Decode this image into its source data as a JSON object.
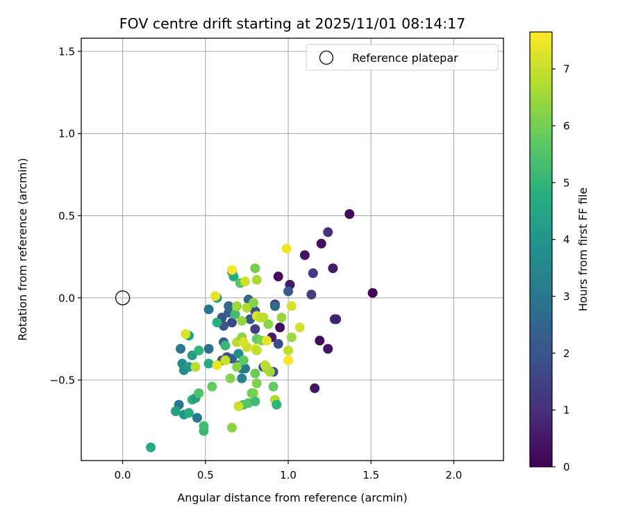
{
  "chart_data": {
    "type": "scatter",
    "title": "FOV centre drift starting at 2025/11/01 08:14:17",
    "xlabel": "Angular distance from reference (arcmin)",
    "ylabel": "Rotation from reference (arcmin)",
    "xlim": [
      -0.25,
      2.3
    ],
    "ylim": [
      -0.99,
      1.58
    ],
    "xticks": [
      0.0,
      0.5,
      1.0,
      1.5,
      2.0
    ],
    "xtick_labels": [
      "0.0",
      "0.5",
      "1.0",
      "1.5",
      "2.0"
    ],
    "yticks": [
      -0.5,
      0.0,
      0.5,
      1.0,
      1.5
    ],
    "ytick_labels": [
      "−0.5",
      "0.0",
      "0.5",
      "1.0",
      "1.5"
    ],
    "grid": true,
    "legend": {
      "placement": "top-right",
      "entries": [
        "Reference platepar"
      ]
    },
    "reference_point": {
      "x": 0.0,
      "y": 0.0
    },
    "colorbar": {
      "label": "Hours from first FF file",
      "range": [
        0,
        7.65
      ],
      "ticks": [
        0,
        1,
        2,
        3,
        4,
        5,
        6,
        7
      ],
      "tick_labels": [
        "0",
        "1",
        "2",
        "3",
        "4",
        "5",
        "6",
        "7"
      ],
      "colormap": "viridis"
    },
    "points": [
      {
        "x": 1.37,
        "y": 0.51,
        "h": 0.1
      },
      {
        "x": 1.24,
        "y": 0.4,
        "h": 1.1
      },
      {
        "x": 1.2,
        "y": 0.33,
        "h": 0.3
      },
      {
        "x": 1.27,
        "y": 0.18,
        "h": 0.5
      },
      {
        "x": 1.51,
        "y": 0.03,
        "h": 0.0
      },
      {
        "x": 1.1,
        "y": 0.26,
        "h": 0.4
      },
      {
        "x": 1.15,
        "y": 0.15,
        "h": 1.3
      },
      {
        "x": 0.94,
        "y": 0.13,
        "h": 0.2
      },
      {
        "x": 1.01,
        "y": 0.08,
        "h": 0.5
      },
      {
        "x": 1.14,
        "y": 0.02,
        "h": 1.4
      },
      {
        "x": 1.28,
        "y": -0.13,
        "h": 0.9
      },
      {
        "x": 1.29,
        "y": -0.13,
        "h": 0.7
      },
      {
        "x": 0.95,
        "y": -0.18,
        "h": 0.3
      },
      {
        "x": 0.9,
        "y": -0.24,
        "h": 0.6
      },
      {
        "x": 1.19,
        "y": -0.26,
        "h": 0.2
      },
      {
        "x": 1.24,
        "y": -0.31,
        "h": 0.4
      },
      {
        "x": 1.16,
        "y": -0.55,
        "h": 0.5
      },
      {
        "x": 0.94,
        "y": -0.28,
        "h": 1.8
      },
      {
        "x": 1.0,
        "y": 0.04,
        "h": 2.2
      },
      {
        "x": 0.92,
        "y": -0.04,
        "h": 0.8
      },
      {
        "x": 0.92,
        "y": -0.05,
        "h": 2.6
      },
      {
        "x": 0.85,
        "y": -0.42,
        "h": 1.6
      },
      {
        "x": 0.91,
        "y": -0.45,
        "h": 1.8
      },
      {
        "x": 0.8,
        "y": -0.08,
        "h": 1.9
      },
      {
        "x": 0.76,
        "y": -0.01,
        "h": 2.5
      },
      {
        "x": 0.77,
        "y": -0.13,
        "h": 2.1
      },
      {
        "x": 0.8,
        "y": -0.19,
        "h": 1.5
      },
      {
        "x": 0.66,
        "y": -0.15,
        "h": 1.7
      },
      {
        "x": 0.6,
        "y": -0.12,
        "h": 1.9
      },
      {
        "x": 0.61,
        "y": -0.17,
        "h": 2.0
      },
      {
        "x": 0.64,
        "y": -0.09,
        "h": 2.4
      },
      {
        "x": 0.64,
        "y": -0.05,
        "h": 2.7
      },
      {
        "x": 0.52,
        "y": -0.07,
        "h": 2.9
      },
      {
        "x": 0.52,
        "y": -0.31,
        "h": 2.8
      },
      {
        "x": 0.61,
        "y": -0.27,
        "h": 2.3
      },
      {
        "x": 0.63,
        "y": -0.36,
        "h": 2.1
      },
      {
        "x": 0.6,
        "y": -0.38,
        "h": 1.9
      },
      {
        "x": 0.66,
        "y": -0.37,
        "h": 2.2
      },
      {
        "x": 0.7,
        "y": -0.41,
        "h": 2.6
      },
      {
        "x": 0.72,
        "y": -0.49,
        "h": 3.4
      },
      {
        "x": 0.72,
        "y": -0.43,
        "h": 3.2
      },
      {
        "x": 0.66,
        "y": 0.16,
        "h": 2.3
      },
      {
        "x": 0.67,
        "y": 0.13,
        "h": 4.7
      },
      {
        "x": 0.57,
        "y": 0.0,
        "h": 3.9
      },
      {
        "x": 0.7,
        "y": -0.34,
        "h": 3.7
      },
      {
        "x": 0.74,
        "y": -0.43,
        "h": 3.1
      },
      {
        "x": 0.35,
        "y": -0.31,
        "h": 3.0
      },
      {
        "x": 0.36,
        "y": -0.4,
        "h": 3.6
      },
      {
        "x": 0.37,
        "y": -0.44,
        "h": 3.8
      },
      {
        "x": 0.4,
        "y": -0.42,
        "h": 4.1
      },
      {
        "x": 0.42,
        "y": -0.35,
        "h": 4.3
      },
      {
        "x": 0.4,
        "y": -0.23,
        "h": 4.5
      },
      {
        "x": 0.46,
        "y": -0.32,
        "h": 4.9
      },
      {
        "x": 0.52,
        "y": -0.4,
        "h": 4.6
      },
      {
        "x": 0.57,
        "y": -0.15,
        "h": 4.8
      },
      {
        "x": 0.62,
        "y": -0.29,
        "h": 5.1
      },
      {
        "x": 0.68,
        "y": -0.1,
        "h": 5.3
      },
      {
        "x": 0.34,
        "y": -0.65,
        "h": 3.0
      },
      {
        "x": 0.32,
        "y": -0.69,
        "h": 4.4
      },
      {
        "x": 0.37,
        "y": -0.71,
        "h": 4.0
      },
      {
        "x": 0.4,
        "y": -0.7,
        "h": 4.7
      },
      {
        "x": 0.42,
        "y": -0.62,
        "h": 4.9
      },
      {
        "x": 0.44,
        "y": -0.61,
        "h": 4.2
      },
      {
        "x": 0.45,
        "y": -0.73,
        "h": 3.1
      },
      {
        "x": 0.49,
        "y": -0.81,
        "h": 5.1
      },
      {
        "x": 0.49,
        "y": -0.78,
        "h": 5.3
      },
      {
        "x": 0.17,
        "y": -0.91,
        "h": 4.6
      },
      {
        "x": 0.46,
        "y": -0.58,
        "h": 5.5
      },
      {
        "x": 0.54,
        "y": -0.54,
        "h": 5.8
      },
      {
        "x": 0.66,
        "y": -0.79,
        "h": 6.3
      },
      {
        "x": 0.73,
        "y": -0.65,
        "h": 5.4
      },
      {
        "x": 0.76,
        "y": -0.64,
        "h": 5.6
      },
      {
        "x": 0.79,
        "y": -0.58,
        "h": 6.4
      },
      {
        "x": 0.8,
        "y": -0.63,
        "h": 5.2
      },
      {
        "x": 0.7,
        "y": -0.66,
        "h": 7.0
      },
      {
        "x": 0.78,
        "y": -0.58,
        "h": 6.0
      },
      {
        "x": 0.81,
        "y": -0.52,
        "h": 6.1
      },
      {
        "x": 0.91,
        "y": -0.54,
        "h": 5.8
      },
      {
        "x": 0.92,
        "y": -0.62,
        "h": 6.7
      },
      {
        "x": 0.93,
        "y": -0.65,
        "h": 4.9
      },
      {
        "x": 0.65,
        "y": -0.49,
        "h": 6.2
      },
      {
        "x": 0.73,
        "y": -0.38,
        "h": 5.7
      },
      {
        "x": 0.8,
        "y": -0.46,
        "h": 5.9
      },
      {
        "x": 0.87,
        "y": -0.43,
        "h": 6.5
      },
      {
        "x": 0.89,
        "y": -0.45,
        "h": 6.6
      },
      {
        "x": 0.86,
        "y": -0.41,
        "h": 6.8
      },
      {
        "x": 0.56,
        "y": 0.01,
        "h": 7.3
      },
      {
        "x": 0.66,
        "y": 0.17,
        "h": 7.6
      },
      {
        "x": 0.71,
        "y": 0.09,
        "h": 5.6
      },
      {
        "x": 0.74,
        "y": 0.1,
        "h": 7.1
      },
      {
        "x": 0.81,
        "y": 0.11,
        "h": 6.6
      },
      {
        "x": 0.8,
        "y": 0.18,
        "h": 6.0
      },
      {
        "x": 0.99,
        "y": 0.3,
        "h": 7.5
      },
      {
        "x": 0.69,
        "y": -0.05,
        "h": 6.5
      },
      {
        "x": 0.75,
        "y": -0.06,
        "h": 6.7
      },
      {
        "x": 0.79,
        "y": -0.03,
        "h": 6.2
      },
      {
        "x": 0.72,
        "y": -0.14,
        "h": 6.4
      },
      {
        "x": 0.81,
        "y": -0.11,
        "h": 7.3
      },
      {
        "x": 0.83,
        "y": -0.12,
        "h": 7.0
      },
      {
        "x": 0.85,
        "y": -0.12,
        "h": 6.9
      },
      {
        "x": 0.88,
        "y": -0.16,
        "h": 6.3
      },
      {
        "x": 0.96,
        "y": -0.12,
        "h": 6.4
      },
      {
        "x": 1.02,
        "y": -0.05,
        "h": 7.2
      },
      {
        "x": 1.07,
        "y": -0.18,
        "h": 7.1
      },
      {
        "x": 1.02,
        "y": -0.24,
        "h": 6.5
      },
      {
        "x": 0.81,
        "y": -0.25,
        "h": 5.8
      },
      {
        "x": 0.84,
        "y": -0.26,
        "h": 6.1
      },
      {
        "x": 0.87,
        "y": -0.26,
        "h": 7.4
      },
      {
        "x": 0.69,
        "y": -0.27,
        "h": 6.8
      },
      {
        "x": 0.72,
        "y": -0.24,
        "h": 6.3
      },
      {
        "x": 0.75,
        "y": -0.3,
        "h": 7.0
      },
      {
        "x": 0.73,
        "y": -0.27,
        "h": 7.2
      },
      {
        "x": 0.8,
        "y": -0.31,
        "h": 7.3
      },
      {
        "x": 0.81,
        "y": -0.32,
        "h": 6.9
      },
      {
        "x": 0.57,
        "y": -0.41,
        "h": 7.4
      },
      {
        "x": 0.62,
        "y": -0.38,
        "h": 7.0
      },
      {
        "x": 0.44,
        "y": -0.42,
        "h": 6.8
      },
      {
        "x": 0.38,
        "y": -0.22,
        "h": 7.2
      },
      {
        "x": 1.0,
        "y": -0.38,
        "h": 7.6
      },
      {
        "x": 1.0,
        "y": -0.32,
        "h": 6.9
      },
      {
        "x": 0.69,
        "y": -0.42,
        "h": 6.2
      }
    ]
  }
}
